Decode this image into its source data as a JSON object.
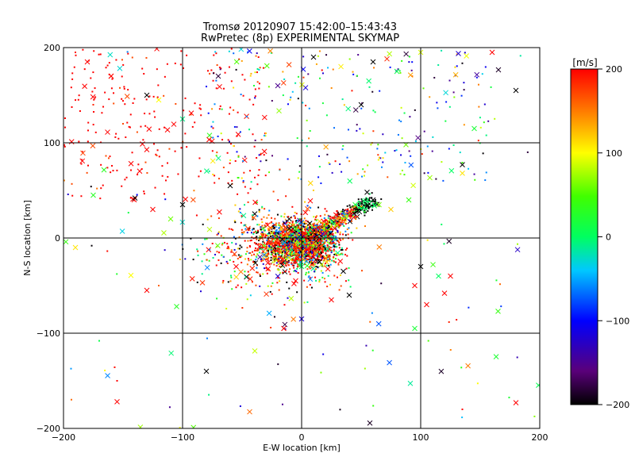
{
  "chart_data": {
    "type": "scatter",
    "title": "Tromsø 20120907 15:42:00–15:43:43",
    "subtitle": "RwPretec (8p) EXPERIMENTAL SKYMAP",
    "xlabel": "E-W location [km]",
    "ylabel": "N-S location [km]",
    "xlim": [
      -200,
      200
    ],
    "ylim": [
      -200,
      200
    ],
    "x_ticks": [
      "−200",
      "−100",
      "0",
      "100",
      "200"
    ],
    "y_ticks": [
      "−200",
      "−100",
      "0",
      "100",
      "200"
    ],
    "grid": true,
    "colorbar": {
      "label": "[m/s]",
      "range": [
        -200,
        200
      ],
      "ticks": [
        "200",
        "100",
        "0",
        "−100",
        "−200"
      ]
    },
    "markers": [
      "dot",
      "x"
    ],
    "point_distribution": "dense cluster of several thousand points around (0,0) extending to the north-east (about +50 km E, +40 km N); sparser red points in the north-west quadrant and scattered points elsewhere",
    "sample_points": [
      {
        "x": -190,
        "y": 195,
        "v": 190,
        "m": "dot"
      },
      {
        "x": -180,
        "y": 185,
        "v": 200,
        "m": "x"
      },
      {
        "x": -160,
        "y": 170,
        "v": 180,
        "m": "x"
      },
      {
        "x": -175,
        "y": 140,
        "v": 185,
        "m": "dot"
      },
      {
        "x": -150,
        "y": 120,
        "v": 170,
        "m": "dot"
      },
      {
        "x": -130,
        "y": 150,
        "v": -200,
        "m": "x"
      },
      {
        "x": -120,
        "y": 145,
        "v": 100,
        "m": "x"
      },
      {
        "x": -100,
        "y": 125,
        "v": -10,
        "m": "x"
      },
      {
        "x": -70,
        "y": 170,
        "v": -180,
        "m": "x"
      },
      {
        "x": -40,
        "y": 160,
        "v": 20,
        "m": "dot"
      },
      {
        "x": -30,
        "y": 110,
        "v": 120,
        "m": "dot"
      },
      {
        "x": -20,
        "y": 160,
        "v": -150,
        "m": "x"
      },
      {
        "x": 10,
        "y": 190,
        "v": -200,
        "m": "x"
      },
      {
        "x": 50,
        "y": 140,
        "v": -200,
        "m": "x"
      },
      {
        "x": 60,
        "y": 185,
        "v": -200,
        "m": "x"
      },
      {
        "x": 80,
        "y": 175,
        "v": 10,
        "m": "x"
      },
      {
        "x": 100,
        "y": 195,
        "v": 90,
        "m": "x"
      },
      {
        "x": 145,
        "y": 115,
        "v": 20,
        "m": "x"
      },
      {
        "x": 180,
        "y": 155,
        "v": -200,
        "m": "x"
      },
      {
        "x": 160,
        "y": 195,
        "v": 200,
        "m": "x"
      },
      {
        "x": 135,
        "y": 77,
        "v": -200,
        "m": "x"
      },
      {
        "x": 135,
        "y": 68,
        "v": 110,
        "m": "x"
      },
      {
        "x": -160,
        "y": 170,
        "v": 200,
        "m": "x"
      },
      {
        "x": -175,
        "y": 45,
        "v": 30,
        "m": "x"
      },
      {
        "x": -140,
        "y": 42,
        "v": -200,
        "m": "x"
      },
      {
        "x": -125,
        "y": 30,
        "v": 200,
        "m": "x"
      },
      {
        "x": -110,
        "y": 20,
        "v": 60,
        "m": "x"
      },
      {
        "x": -100,
        "y": 35,
        "v": -200,
        "m": "x"
      },
      {
        "x": -60,
        "y": 55,
        "v": -200,
        "m": "x"
      },
      {
        "x": -130,
        "y": -55,
        "v": 200,
        "m": "x"
      },
      {
        "x": -120,
        "y": -50,
        "v": 160,
        "m": "dot"
      },
      {
        "x": -105,
        "y": -72,
        "v": 30,
        "m": "x"
      },
      {
        "x": -190,
        "y": -10,
        "v": 110,
        "m": "x"
      },
      {
        "x": -198,
        "y": -4,
        "v": 40,
        "m": "x"
      },
      {
        "x": -80,
        "y": -140,
        "v": -200,
        "m": "x"
      },
      {
        "x": -155,
        "y": -172,
        "v": 200,
        "m": "x"
      },
      {
        "x": -155,
        "y": -150,
        "v": 200,
        "m": "dot"
      },
      {
        "x": -170,
        "y": -108,
        "v": 10,
        "m": "dot"
      },
      {
        "x": -15,
        "y": -95,
        "v": 200,
        "m": "x"
      },
      {
        "x": 0,
        "y": -85,
        "v": -120,
        "m": "x"
      },
      {
        "x": 100,
        "y": -30,
        "v": -200,
        "m": "x"
      },
      {
        "x": 115,
        "y": -40,
        "v": 0,
        "m": "x"
      },
      {
        "x": 125,
        "y": -40,
        "v": 200,
        "m": "x"
      },
      {
        "x": 95,
        "y": -50,
        "v": 200,
        "m": "x"
      },
      {
        "x": 105,
        "y": -70,
        "v": 200,
        "m": "x"
      },
      {
        "x": 120,
        "y": -58,
        "v": 200,
        "m": "x"
      },
      {
        "x": 95,
        "y": -95,
        "v": 20,
        "m": "x"
      },
      {
        "x": 165,
        "y": -77,
        "v": 40,
        "m": "x"
      },
      {
        "x": 180,
        "y": -173,
        "v": 200,
        "m": "x"
      },
      {
        "x": 135,
        "y": -180,
        "v": 200,
        "m": "dot"
      },
      {
        "x": 60,
        "y": 40,
        "v": -200,
        "m": "x"
      },
      {
        "x": 55,
        "y": 48,
        "v": -200,
        "m": "x"
      },
      {
        "x": 45,
        "y": 35,
        "v": 20,
        "m": "x"
      },
      {
        "x": 30,
        "y": 20,
        "v": 150,
        "m": "x"
      },
      {
        "x": 20,
        "y": 5,
        "v": 200,
        "m": "x"
      },
      {
        "x": 10,
        "y": -5,
        "v": 170,
        "m": "x"
      },
      {
        "x": -5,
        "y": 10,
        "v": 40,
        "m": "x"
      },
      {
        "x": -15,
        "y": -10,
        "v": 200,
        "m": "x"
      },
      {
        "x": -25,
        "y": 5,
        "v": 80,
        "m": "x"
      },
      {
        "x": -35,
        "y": -20,
        "v": -150,
        "m": "x"
      },
      {
        "x": -45,
        "y": 10,
        "v": 180,
        "m": "x"
      },
      {
        "x": -55,
        "y": -30,
        "v": 200,
        "m": "x"
      },
      {
        "x": 15,
        "y": -25,
        "v": -200,
        "m": "x"
      },
      {
        "x": 35,
        "y": -35,
        "v": -200,
        "m": "x"
      },
      {
        "x": 40,
        "y": -60,
        "v": -200,
        "m": "x"
      },
      {
        "x": 0,
        "y": -30,
        "v": 0,
        "m": "x"
      },
      {
        "x": 25,
        "y": -65,
        "v": 200,
        "m": "x"
      },
      {
        "x": -5,
        "y": -45,
        "v": 200,
        "m": "x"
      },
      {
        "x": 65,
        "y": 35,
        "v": 60,
        "m": "x"
      },
      {
        "x": 75,
        "y": 30,
        "v": 120,
        "m": "x"
      },
      {
        "x": 90,
        "y": 40,
        "v": 40,
        "m": "x"
      }
    ]
  }
}
